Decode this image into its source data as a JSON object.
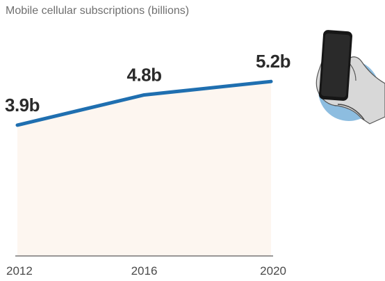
{
  "chart_data": {
    "type": "area",
    "title": "Mobile cellular subscriptions (billions)",
    "x": [
      "2012",
      "2016",
      "2020"
    ],
    "values": [
      3.9,
      4.8,
      5.2
    ],
    "data_labels": [
      "3.9b",
      "4.8b",
      "5.2b"
    ],
    "xlabel": "",
    "ylabel": "",
    "ylim": [
      0,
      6.8
    ],
    "grid": false,
    "colors": {
      "line": "#1f6fb0",
      "area": "#fdf6f0",
      "baseline": "#333333"
    }
  },
  "illustration": {
    "icon": "hand-holding-smartphone-icon",
    "circle_color": "#8dbde0"
  }
}
